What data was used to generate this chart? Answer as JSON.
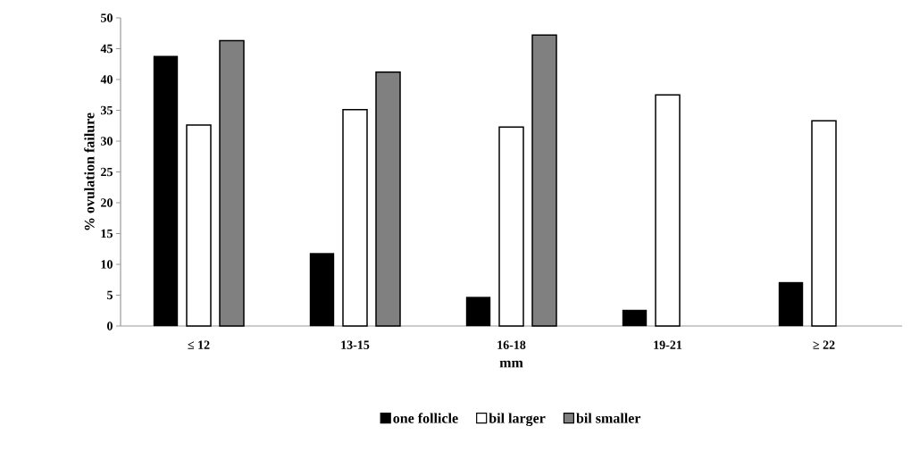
{
  "chart_data": {
    "type": "bar",
    "xlabel": "mm",
    "ylabel": "% ovulation failure",
    "categories": [
      "≤ 12",
      "13-15",
      "16-18",
      "19-21",
      "≥ 22"
    ],
    "series": [
      {
        "name": "one follicle",
        "color": "#000000",
        "values": [
          43.8,
          11.8,
          4.7,
          2.6,
          7.1
        ]
      },
      {
        "name": "bil larger",
        "color": "#ffffff",
        "values": [
          32.6,
          35.1,
          32.3,
          37.5,
          33.3
        ]
      },
      {
        "name": "bil smaller",
        "color": "#808080",
        "values": [
          46.3,
          41.2,
          47.2,
          null,
          null
        ]
      }
    ],
    "ylim": [
      0,
      50
    ],
    "yticks": [
      0,
      5,
      10,
      15,
      20,
      25,
      30,
      35,
      40,
      45,
      50
    ],
    "grid": false,
    "legend": "bottom"
  }
}
